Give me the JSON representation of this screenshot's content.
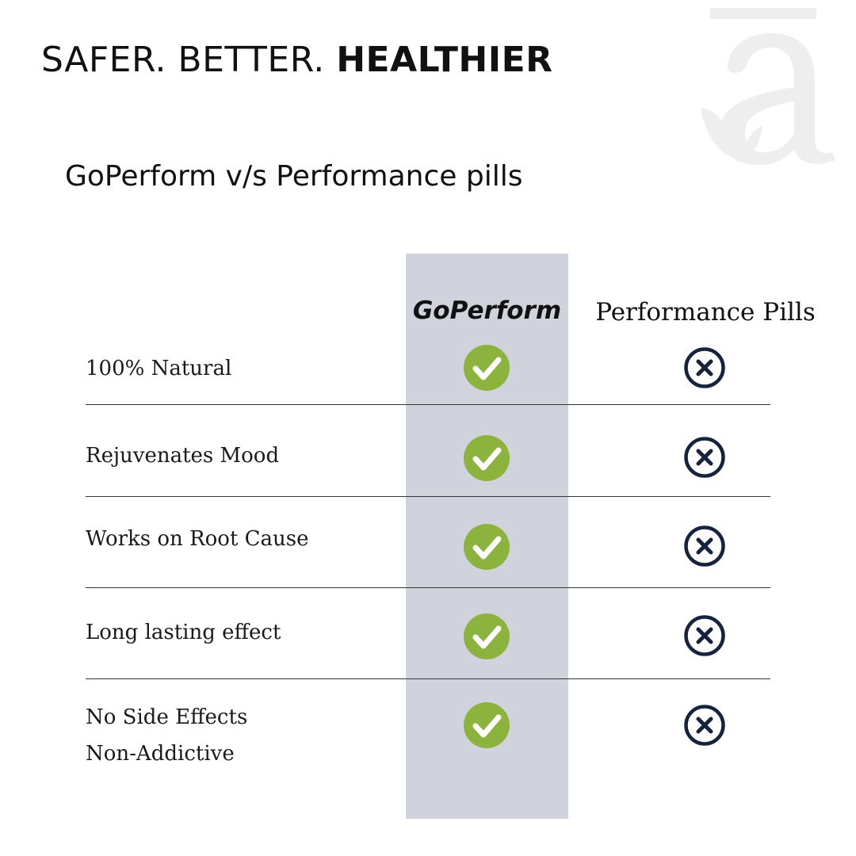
{
  "headline": {
    "regular": "SAFER. BETTER. ",
    "strong": "HEALTHIER"
  },
  "subtitle": "GoPerform v/s Performance pills",
  "logo": {
    "icon": "brand-letter-a-leaf-icon",
    "color": "#eeeeef"
  },
  "table": {
    "columns": {
      "brand": "GoPerform",
      "competitor": "Performance Pills"
    },
    "rows": [
      {
        "lines": [
          "100% Natural"
        ],
        "brand": "check",
        "competitor": "cross"
      },
      {
        "lines": [
          "Rejuvenates Mood"
        ],
        "brand": "check",
        "competitor": "cross"
      },
      {
        "lines": [
          "Works on Root Cause"
        ],
        "brand": "check",
        "competitor": "cross"
      },
      {
        "lines": [
          "Long lasting effect"
        ],
        "brand": "check",
        "competitor": "cross"
      },
      {
        "lines": [
          "No Side Effects",
          "Non-Addictive"
        ],
        "brand": "check",
        "competitor": "cross"
      }
    ]
  },
  "colors": {
    "check": "#8cb33e",
    "cross": "#17233d",
    "band": "#d1d3dc"
  },
  "icons": {
    "check": "check-circle-icon",
    "cross": "x-circle-icon"
  }
}
